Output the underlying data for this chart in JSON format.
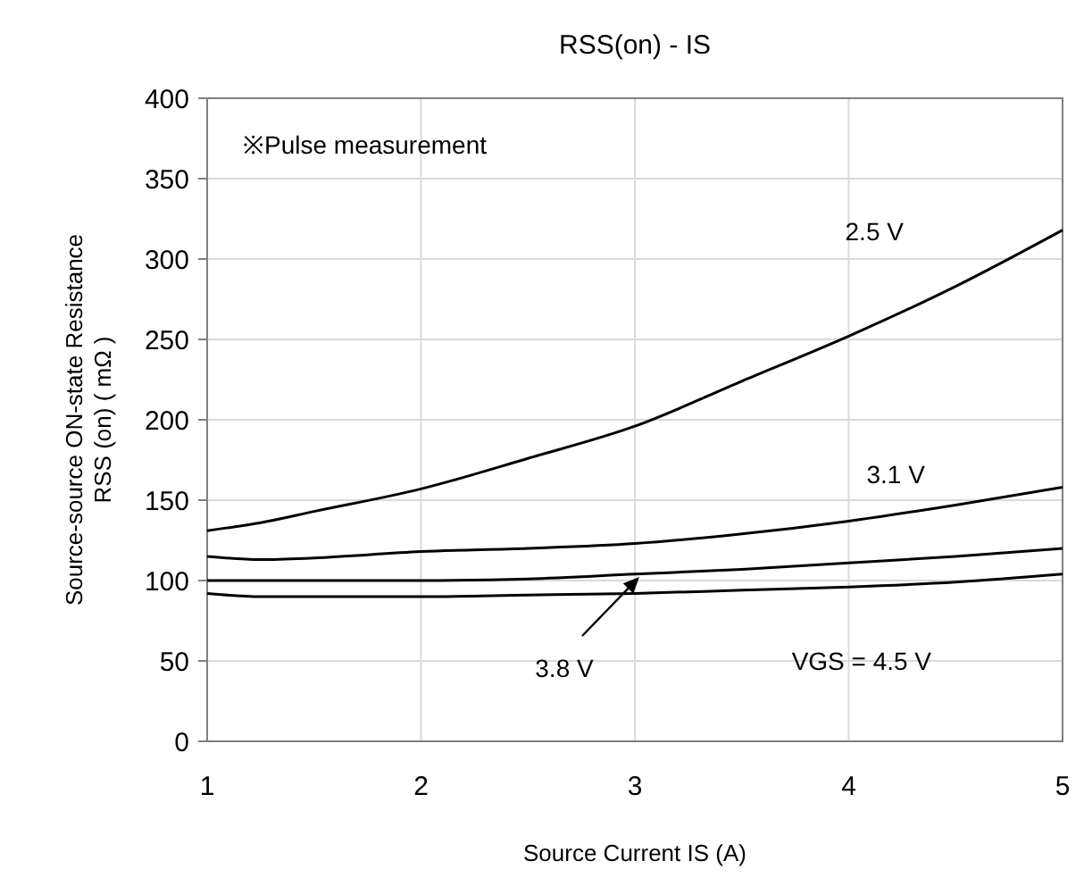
{
  "chart_data": {
    "type": "line",
    "title": "RSS(on) - IS",
    "xlabel": "Source Current IS (A)",
    "ylabel": "Source-source ON-state Resistance\nRSS (on)  ( mΩ )",
    "annotations": [
      "※Pulse measurement",
      "3.8 V"
    ],
    "x": [
      1,
      1.25,
      1.5,
      2,
      2.5,
      3,
      3.5,
      4,
      4.5,
      5
    ],
    "series": [
      {
        "name": "2.5 V",
        "color": "#000000",
        "values": [
          131,
          136,
          143,
          157,
          176,
          196,
          224,
          252,
          283,
          318
        ]
      },
      {
        "name": "3.1 V",
        "color": "#000000",
        "values": [
          115,
          113,
          114,
          118,
          120,
          123,
          129,
          137,
          147,
          158
        ]
      },
      {
        "color": "#000000",
        "values": [
          100,
          100,
          100,
          100,
          101,
          104,
          107,
          111,
          115,
          120
        ]
      },
      {
        "name": "VGS = 4.5 V",
        "color": "#000000",
        "values": [
          92,
          90,
          90,
          90,
          91,
          92,
          94,
          96,
          99,
          104
        ]
      }
    ],
    "xlim": [
      1,
      5
    ],
    "xticks": [
      1,
      2,
      3,
      4,
      5
    ],
    "ylim": [
      0,
      400
    ],
    "yticks": [
      0,
      50,
      100,
      150,
      200,
      250,
      300,
      350,
      400
    ],
    "grid": true,
    "marker": "none",
    "line_style": "solid"
  }
}
